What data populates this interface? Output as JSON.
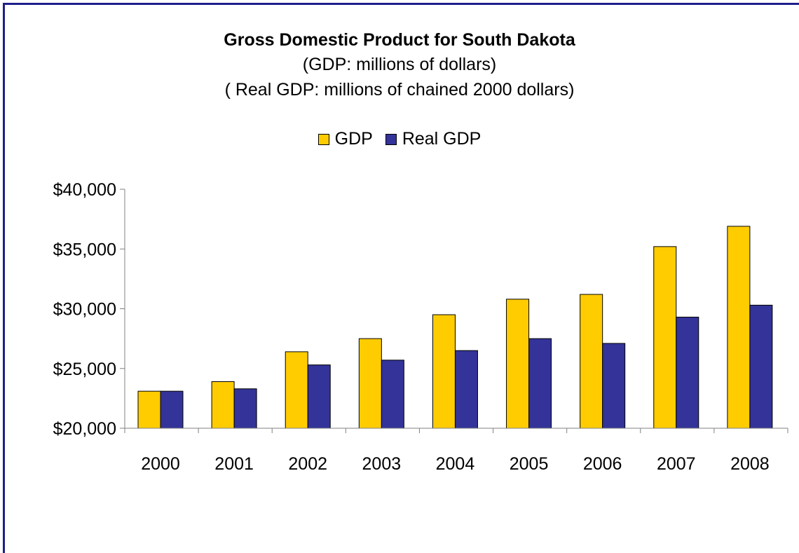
{
  "chart_data": {
    "type": "bar",
    "title": "Gross Domestic Product for South Dakota",
    "subtitles": [
      "(GDP: millions of dollars)",
      "( Real GDP: millions of chained 2000 dollars)"
    ],
    "categories": [
      "2000",
      "2001",
      "2002",
      "2003",
      "2004",
      "2005",
      "2006",
      "2007",
      "2008"
    ],
    "series": [
      {
        "name": "GDP",
        "color": "#ffcc00",
        "values": [
          23100,
          23900,
          26400,
          27500,
          29500,
          30800,
          31200,
          35200,
          36900
        ]
      },
      {
        "name": "Real GDP",
        "color": "#333399",
        "values": [
          23100,
          23300,
          25300,
          25700,
          26500,
          27500,
          27100,
          29300,
          30300
        ]
      }
    ],
    "ylim": [
      20000,
      40000
    ],
    "yticks": [
      20000,
      25000,
      30000,
      35000,
      40000
    ],
    "ytick_labels": [
      "$20,000",
      "$25,000",
      "$30,000",
      "$35,000",
      "$40,000"
    ],
    "legend": "top",
    "grid": false
  }
}
